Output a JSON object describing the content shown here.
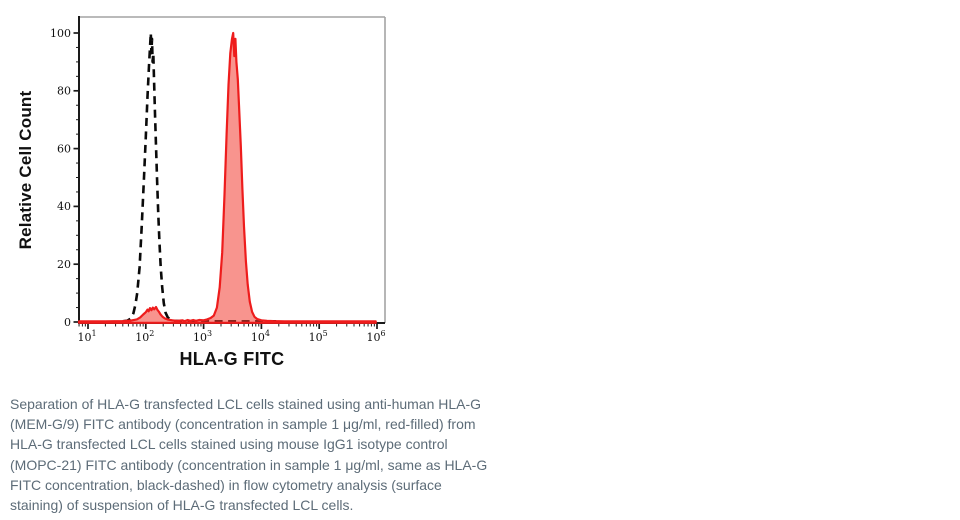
{
  "chart_data": {
    "type": "area",
    "subtype": "flow-cytometry-histogram",
    "xlabel": "HLA-G FITC",
    "ylabel": "Relative Cell Count",
    "x_scale": "log10",
    "x_range": [
      10,
      1000000
    ],
    "y_range": [
      0,
      100
    ],
    "x_tick_exponents": [
      1,
      2,
      3,
      4,
      5,
      6
    ],
    "x_tick_base": "10",
    "y_ticks": [
      0,
      20,
      40,
      60,
      80,
      100
    ],
    "y_minor_step": 5,
    "grid": false,
    "legend": "none",
    "styles": {
      "spine_black": "#1a1a1a",
      "spine_gray": "#a3a3a3",
      "tick_label_color": "#111111",
      "dashed_stroke": "#0a0a0a",
      "red_stroke": "#ee1c1c",
      "red_fill": "rgba(242,60,50,0.55)"
    },
    "series": [
      {
        "name": "Mouse IgG1 isotype control (MOPC-21) FITC",
        "style": "black-dashed",
        "points": [
          [
            40,
            0.25
          ],
          [
            48,
            0.5
          ],
          [
            55,
            1.2
          ],
          [
            61,
            3
          ],
          [
            66,
            6
          ],
          [
            71,
            10
          ],
          [
            78,
            19
          ],
          [
            85,
            33
          ],
          [
            93,
            50
          ],
          [
            100,
            64
          ],
          [
            107,
            78
          ],
          [
            113,
            88
          ],
          [
            118,
            95
          ],
          [
            122,
            100
          ],
          [
            125,
            93
          ],
          [
            128,
            98
          ],
          [
            131,
            90
          ],
          [
            135,
            93
          ],
          [
            139,
            83
          ],
          [
            144,
            72
          ],
          [
            150,
            61
          ],
          [
            157,
            49
          ],
          [
            164,
            38
          ],
          [
            172,
            28
          ],
          [
            181,
            19
          ],
          [
            192,
            12
          ],
          [
            205,
            6.5
          ],
          [
            220,
            3.2
          ],
          [
            240,
            1.6
          ],
          [
            265,
            0.8
          ],
          [
            300,
            0.4
          ],
          [
            380,
            0.3
          ],
          [
            600,
            0.25
          ],
          [
            1500,
            0.25
          ],
          [
            4000,
            0.25
          ],
          [
            9000,
            0.25
          ],
          [
            18000,
            0.25
          ]
        ]
      },
      {
        "name": "Anti-human HLA-G (MEM-G/9) FITC",
        "style": "red-filled",
        "points": [
          [
            7,
            0.2
          ],
          [
            20,
            0.2
          ],
          [
            40,
            0.3
          ],
          [
            55,
            0.5
          ],
          [
            70,
            0.9
          ],
          [
            80,
            1.6
          ],
          [
            90,
            2.6
          ],
          [
            100,
            3.4
          ],
          [
            107,
            4.3
          ],
          [
            112,
            3.7
          ],
          [
            118,
            4.8
          ],
          [
            125,
            4.1
          ],
          [
            132,
            5.0
          ],
          [
            140,
            4.4
          ],
          [
            150,
            5.2
          ],
          [
            158,
            4.3
          ],
          [
            168,
            3.6
          ],
          [
            180,
            2.6
          ],
          [
            195,
            1.8
          ],
          [
            215,
            1.2
          ],
          [
            245,
            0.8
          ],
          [
            290,
            0.6
          ],
          [
            350,
            0.4
          ],
          [
            430,
            0.6
          ],
          [
            470,
            0.3
          ],
          [
            530,
            0.7
          ],
          [
            590,
            0.4
          ],
          [
            660,
            0.7
          ],
          [
            740,
            0.4
          ],
          [
            850,
            0.7
          ],
          [
            1000,
            0.6
          ],
          [
            1150,
            0.9
          ],
          [
            1320,
            1.4
          ],
          [
            1500,
            2.2
          ],
          [
            1700,
            5
          ],
          [
            1900,
            12
          ],
          [
            2100,
            24
          ],
          [
            2300,
            44
          ],
          [
            2500,
            65
          ],
          [
            2700,
            82
          ],
          [
            2900,
            93
          ],
          [
            3100,
            98
          ],
          [
            3250,
            100
          ],
          [
            3400,
            92
          ],
          [
            3550,
            98
          ],
          [
            3700,
            90
          ],
          [
            3900,
            84
          ],
          [
            4100,
            75
          ],
          [
            4400,
            61
          ],
          [
            4700,
            46
          ],
          [
            5000,
            33
          ],
          [
            5400,
            21
          ],
          [
            5800,
            13
          ],
          [
            6300,
            7
          ],
          [
            6900,
            3.5
          ],
          [
            7600,
            1.8
          ],
          [
            8500,
            1
          ],
          [
            10000,
            0.6
          ],
          [
            12500,
            0.4
          ],
          [
            16000,
            0.3
          ],
          [
            25000,
            0.25
          ],
          [
            60000,
            0.25
          ],
          [
            150000,
            0.25
          ],
          [
            400000,
            0.2
          ],
          [
            950000,
            0.2
          ]
        ]
      }
    ]
  },
  "figure": {
    "caption_lines": [
      "Separation of HLA-G transfected LCL cells stained using anti-human HLA-G",
      "(MEM-G/9) FITC antibody (concentration in sample 1 μg/ml, red-filled) from",
      "HLA-G transfected LCL cells stained using mouse IgG1 isotype control",
      "(MOPC-21) FITC antibody (concentration in sample 1 μg/ml, same as HLA-G",
      "FITC concentration, black-dashed) in flow cytometry analysis (surface",
      "staining) of suspension of HLA-G transfected LCL cells."
    ],
    "caption_color": "#5d6c78"
  }
}
